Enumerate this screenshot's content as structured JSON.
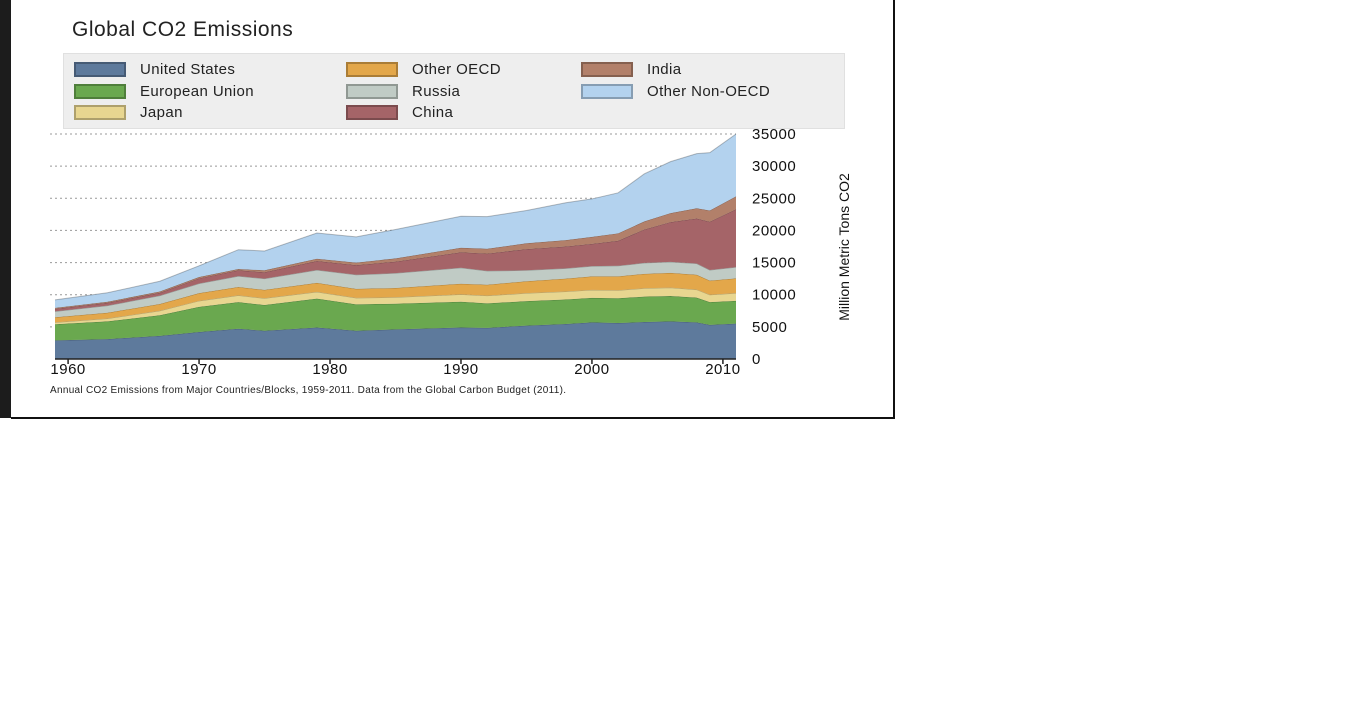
{
  "chart_data": {
    "type": "area",
    "stacked": true,
    "title": "Global CO2 Emissions",
    "ylabel": "Million Metric Tons CO2",
    "caption": "Annual CO2 Emissions from Major Countries/Blocks, 1959-2011. Data from the Global Carbon Budget (2011).",
    "xlim": [
      1959,
      2011
    ],
    "ylim": [
      0,
      35000
    ],
    "x_ticks": [
      1960,
      1970,
      1980,
      1990,
      2000,
      2010
    ],
    "y_ticks": [
      0,
      5000,
      10000,
      15000,
      20000,
      25000,
      30000,
      35000
    ],
    "grid": "horizontal dotted",
    "legend_position": "top",
    "x": [
      1959,
      1963,
      1967,
      1970,
      1973,
      1975,
      1979,
      1982,
      1985,
      1990,
      1992,
      1995,
      1998,
      2000,
      2002,
      2004,
      2006,
      2008,
      2009,
      2011
    ],
    "series": [
      {
        "name": "United States",
        "color": "#5e7a9c",
        "values": [
          2900,
          3100,
          3600,
          4200,
          4700,
          4400,
          4900,
          4400,
          4600,
          4900,
          4850,
          5200,
          5450,
          5700,
          5600,
          5750,
          5850,
          5700,
          5300,
          5500
        ]
      },
      {
        "name": "European Union",
        "color": "#6aa84f",
        "values": [
          2500,
          2750,
          3200,
          3900,
          4150,
          4000,
          4500,
          4100,
          4000,
          4000,
          3800,
          3800,
          3800,
          3800,
          3850,
          3950,
          3950,
          3850,
          3550,
          3550
        ]
      },
      {
        "name": "Japan",
        "color": "#e8d690",
        "values": [
          300,
          450,
          700,
          950,
          1050,
          1050,
          1050,
          1000,
          1000,
          1150,
          1200,
          1250,
          1250,
          1250,
          1250,
          1300,
          1300,
          1250,
          1150,
          1200
        ]
      },
      {
        "name": "Other OECD",
        "color": "#e3a74a",
        "values": [
          800,
          900,
          1050,
          1200,
          1300,
          1300,
          1400,
          1400,
          1450,
          1650,
          1700,
          1850,
          2000,
          2100,
          2150,
          2250,
          2300,
          2300,
          2200,
          2300
        ]
      },
      {
        "name": "Russia",
        "color": "#c0cbc5",
        "values": [
          900,
          1100,
          1300,
          1500,
          1700,
          1750,
          2000,
          2200,
          2300,
          2500,
          2150,
          1700,
          1600,
          1600,
          1650,
          1700,
          1700,
          1750,
          1650,
          1750
        ]
      },
      {
        "name": "China",
        "color": "#a56468",
        "values": [
          400,
          450,
          450,
          800,
          900,
          1000,
          1400,
          1500,
          1800,
          2400,
          2700,
          3300,
          3400,
          3450,
          3900,
          5200,
          6200,
          7000,
          7500,
          9000
        ]
      },
      {
        "name": "India",
        "color": "#b2806a",
        "values": [
          150,
          150,
          200,
          200,
          200,
          300,
          350,
          400,
          500,
          700,
          750,
          900,
          1000,
          1100,
          1150,
          1250,
          1400,
          1600,
          1750,
          2000
        ]
      },
      {
        "name": "Other Non-OECD",
        "color": "#b3d2ee",
        "values": [
          1250,
          1400,
          1600,
          1750,
          3000,
          3000,
          4000,
          4000,
          4500,
          4900,
          5000,
          5100,
          5800,
          5900,
          6300,
          7400,
          8000,
          8500,
          9000,
          9700
        ]
      }
    ]
  }
}
